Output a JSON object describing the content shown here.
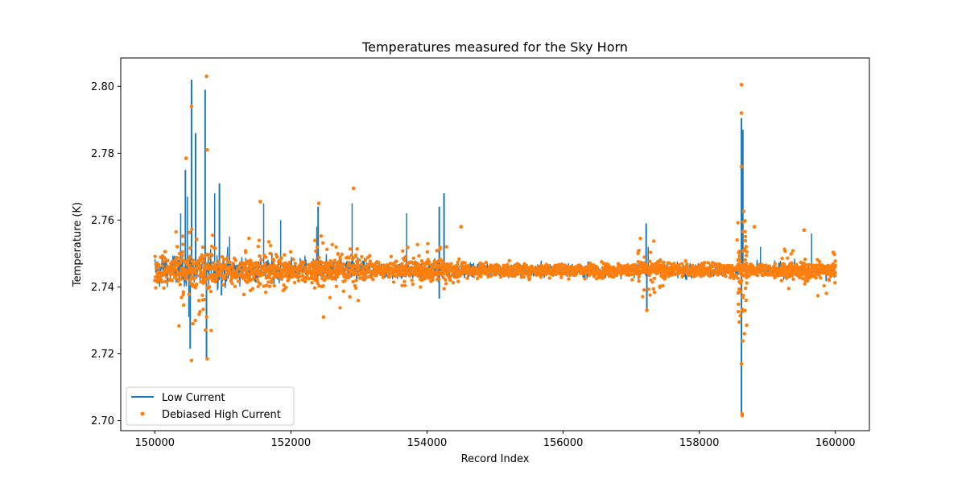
{
  "chart_data": {
    "type": "line",
    "title": "Temperatures measured for the Sky Horn",
    "xlabel": "Record Index",
    "ylabel": "Temperature (K)",
    "xlim": [
      149500,
      160500
    ],
    "ylim": [
      2.697,
      2.8085
    ],
    "xticks": [
      150000,
      152000,
      154000,
      156000,
      158000,
      160000
    ],
    "xtick_labels": [
      "150000",
      "152000",
      "154000",
      "156000",
      "158000",
      "160000"
    ],
    "yticks": [
      2.7,
      2.72,
      2.74,
      2.76,
      2.78,
      2.8
    ],
    "ytick_labels": [
      "2.70",
      "2.72",
      "2.74",
      "2.76",
      "2.78",
      "2.80"
    ],
    "grid": false,
    "legend_position": "lower-left",
    "baseline": 2.745,
    "series": [
      {
        "name": "Low Current",
        "style": "line",
        "color": "#1f77b4",
        "x_range": [
          150000,
          160000
        ],
        "spikes": [
          {
            "x": 150450,
            "y": 2.775
          },
          {
            "x": 150520,
            "y": 2.7215
          },
          {
            "x": 150540,
            "y": 2.802
          },
          {
            "x": 150600,
            "y": 2.786
          },
          {
            "x": 150740,
            "y": 2.799
          },
          {
            "x": 150760,
            "y": 2.7185
          },
          {
            "x": 150950,
            "y": 2.771
          },
          {
            "x": 150980,
            "y": 2.7375
          },
          {
            "x": 152400,
            "y": 2.764
          },
          {
            "x": 154180,
            "y": 2.764
          },
          {
            "x": 154250,
            "y": 2.768
          },
          {
            "x": 154180,
            "y": 2.7365
          },
          {
            "x": 157220,
            "y": 2.759
          },
          {
            "x": 157230,
            "y": 2.7325
          },
          {
            "x": 158620,
            "y": 2.7905
          },
          {
            "x": 158640,
            "y": 2.787
          },
          {
            "x": 158620,
            "y": 2.7015
          }
        ]
      },
      {
        "name": "Debiased High Current",
        "style": "points",
        "color": "#ff7f0e",
        "x_range": [
          150000,
          160000
        ],
        "outliers": [
          {
            "x": 150760,
            "y": 2.803
          },
          {
            "x": 158620,
            "y": 2.8005
          },
          {
            "x": 158620,
            "y": 2.792
          },
          {
            "x": 158630,
            "y": 2.7015
          },
          {
            "x": 158630,
            "y": 2.702
          },
          {
            "x": 150460,
            "y": 2.7785
          },
          {
            "x": 150540,
            "y": 2.794
          },
          {
            "x": 150540,
            "y": 2.718
          },
          {
            "x": 150770,
            "y": 2.781
          },
          {
            "x": 150770,
            "y": 2.7185
          },
          {
            "x": 150560,
            "y": 2.729
          },
          {
            "x": 152920,
            "y": 2.7695
          },
          {
            "x": 152410,
            "y": 2.765
          },
          {
            "x": 152480,
            "y": 2.731
          },
          {
            "x": 154500,
            "y": 2.758
          },
          {
            "x": 158810,
            "y": 2.758
          },
          {
            "x": 159540,
            "y": 2.757
          },
          {
            "x": 157230,
            "y": 2.733
          },
          {
            "x": 158620,
            "y": 2.776
          },
          {
            "x": 158620,
            "y": 2.717
          },
          {
            "x": 151550,
            "y": 2.7655
          }
        ]
      }
    ]
  }
}
